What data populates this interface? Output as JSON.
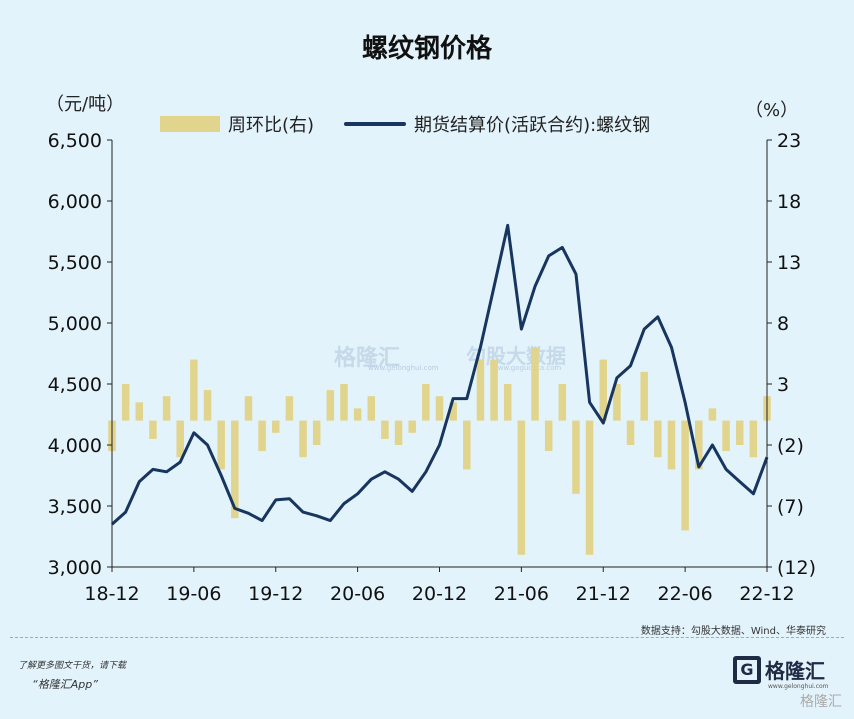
{
  "title": "螺纹钢价格",
  "unit_left": "（元/吨）",
  "unit_right": "（%）",
  "source": "数据支持：勾股大数据、Wind、华泰研究",
  "promo_line1": "了解更多图文干货，请下载",
  "promo_line2": "“格隆汇App”",
  "watermark_left": "格隆汇",
  "watermark_left_sub": "www.gelonghui.com",
  "watermark_right": "勾股大数据",
  "watermark_right_sub": "www.gogudata.com",
  "logo": {
    "text": "格隆汇",
    "sub": "www.gelonghui.com",
    "corner": "格隆汇"
  },
  "chart_data": {
    "type": "bar+line",
    "title": "螺纹钢价格",
    "xlabel": "",
    "ylabel": "（元/吨）",
    "y2label": "（%）",
    "ylim": [
      3000,
      6500
    ],
    "y2lim": [
      -12,
      23
    ],
    "yticks": [
      "3,000",
      "3,500",
      "4,000",
      "4,500",
      "5,000",
      "5,500",
      "6,000",
      "6,500"
    ],
    "y2ticks": [
      "(12)",
      "(7)",
      "(2)",
      "3",
      "8",
      "13",
      "18",
      "23"
    ],
    "xticks": [
      "18-12",
      "19-06",
      "19-12",
      "20-06",
      "20-12",
      "21-06",
      "21-12",
      "22-06",
      "22-12"
    ],
    "legend": [
      "周环比(右)",
      "期货结算价(活跃合约):螺纹钢"
    ],
    "legend_position": "top",
    "grid": false,
    "series": [
      {
        "name": "期货结算价(活跃合约):螺纹钢",
        "axis": "left",
        "color": "#17355f",
        "type": "line",
        "x": [
          "18-12",
          "19-01",
          "19-02",
          "19-03",
          "19-04",
          "19-05",
          "19-06",
          "19-07",
          "19-08",
          "19-09",
          "19-10",
          "19-11",
          "19-12",
          "20-01",
          "20-02",
          "20-03",
          "20-04",
          "20-05",
          "20-06",
          "20-07",
          "20-08",
          "20-09",
          "20-10",
          "20-11",
          "20-12",
          "21-01",
          "21-02",
          "21-03",
          "21-04",
          "21-05",
          "21-06",
          "21-07",
          "21-08",
          "21-09",
          "21-10",
          "21-11",
          "21-12",
          "22-01",
          "22-02",
          "22-03",
          "22-04",
          "22-05",
          "22-06",
          "22-07",
          "22-08",
          "22-09",
          "22-10",
          "22-11",
          "22-12"
        ],
        "values": [
          3350,
          3450,
          3700,
          3800,
          3780,
          3860,
          4100,
          4000,
          3750,
          3480,
          3440,
          3380,
          3550,
          3560,
          3450,
          3420,
          3380,
          3520,
          3600,
          3720,
          3780,
          3720,
          3620,
          3780,
          4000,
          4380,
          4380,
          4800,
          5300,
          5800,
          4950,
          5300,
          5550,
          5620,
          5400,
          4350,
          4180,
          4550,
          4650,
          4950,
          5050,
          4800,
          4350,
          3820,
          4000,
          3800,
          3700,
          3600,
          3900
        ]
      },
      {
        "name": "周环比(右)",
        "axis": "right",
        "color": "#e1d48c",
        "type": "bar",
        "x": [
          "18-12",
          "19-01",
          "19-02",
          "19-03",
          "19-04",
          "19-05",
          "19-06",
          "19-07",
          "19-08",
          "19-09",
          "19-10",
          "19-11",
          "19-12",
          "20-01",
          "20-02",
          "20-03",
          "20-04",
          "20-05",
          "20-06",
          "20-07",
          "20-08",
          "20-09",
          "20-10",
          "20-11",
          "20-12",
          "21-01",
          "21-02",
          "21-03",
          "21-04",
          "21-05",
          "21-06",
          "21-07",
          "21-08",
          "21-09",
          "21-10",
          "21-11",
          "21-12",
          "22-01",
          "22-02",
          "22-03",
          "22-04",
          "22-05",
          "22-06",
          "22-07",
          "22-08",
          "22-09",
          "22-10",
          "22-11",
          "22-12"
        ],
        "values": [
          -2.5,
          3,
          1.5,
          -1.5,
          2,
          -3,
          5,
          2.5,
          -4,
          -8,
          2,
          -2.5,
          -1,
          2,
          -3,
          -2,
          2.5,
          3,
          1,
          2,
          -1.5,
          -2,
          -1,
          3,
          2,
          1.5,
          -4,
          5,
          5,
          3,
          -11,
          6,
          -2.5,
          3,
          -6,
          -11,
          5,
          3,
          -2,
          4,
          -3,
          -4,
          -9,
          -4,
          1,
          -2.5,
          -2,
          -3,
          2
        ]
      }
    ]
  }
}
